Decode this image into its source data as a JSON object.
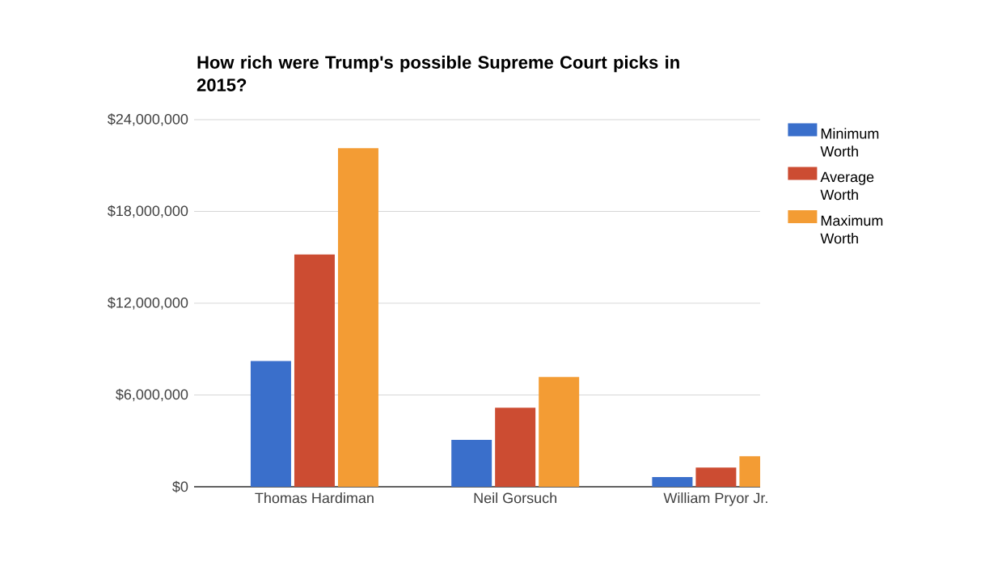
{
  "chart_data": {
    "type": "bar",
    "title": "How rich were Trump's possible Supreme Court picks in 2015?",
    "categories": [
      "Thomas Hardiman",
      "Neil Gorsuch",
      "William Pryor Jr."
    ],
    "series": [
      {
        "name": "Minimum Worth",
        "color": "#3a6fcb",
        "values": [
          8220000,
          3060000,
          630000
        ]
      },
      {
        "name": "Average Worth",
        "color": "#cc4c32",
        "values": [
          15180000,
          5170000,
          1260000
        ]
      },
      {
        "name": "Maximum Worth",
        "color": "#f39c34",
        "values": [
          22140000,
          7170000,
          2000000
        ]
      }
    ],
    "ylim": [
      0,
      24000000
    ],
    "yticks": [
      {
        "value": 0,
        "label": "$0"
      },
      {
        "value": 6000000,
        "label": "$6,000,000"
      },
      {
        "value": 12000000,
        "label": "$12,000,000"
      },
      {
        "value": 18000000,
        "label": "$18,000,000"
      },
      {
        "value": 24000000,
        "label": "$24,000,000"
      }
    ],
    "grid": "y",
    "legend": "right"
  }
}
